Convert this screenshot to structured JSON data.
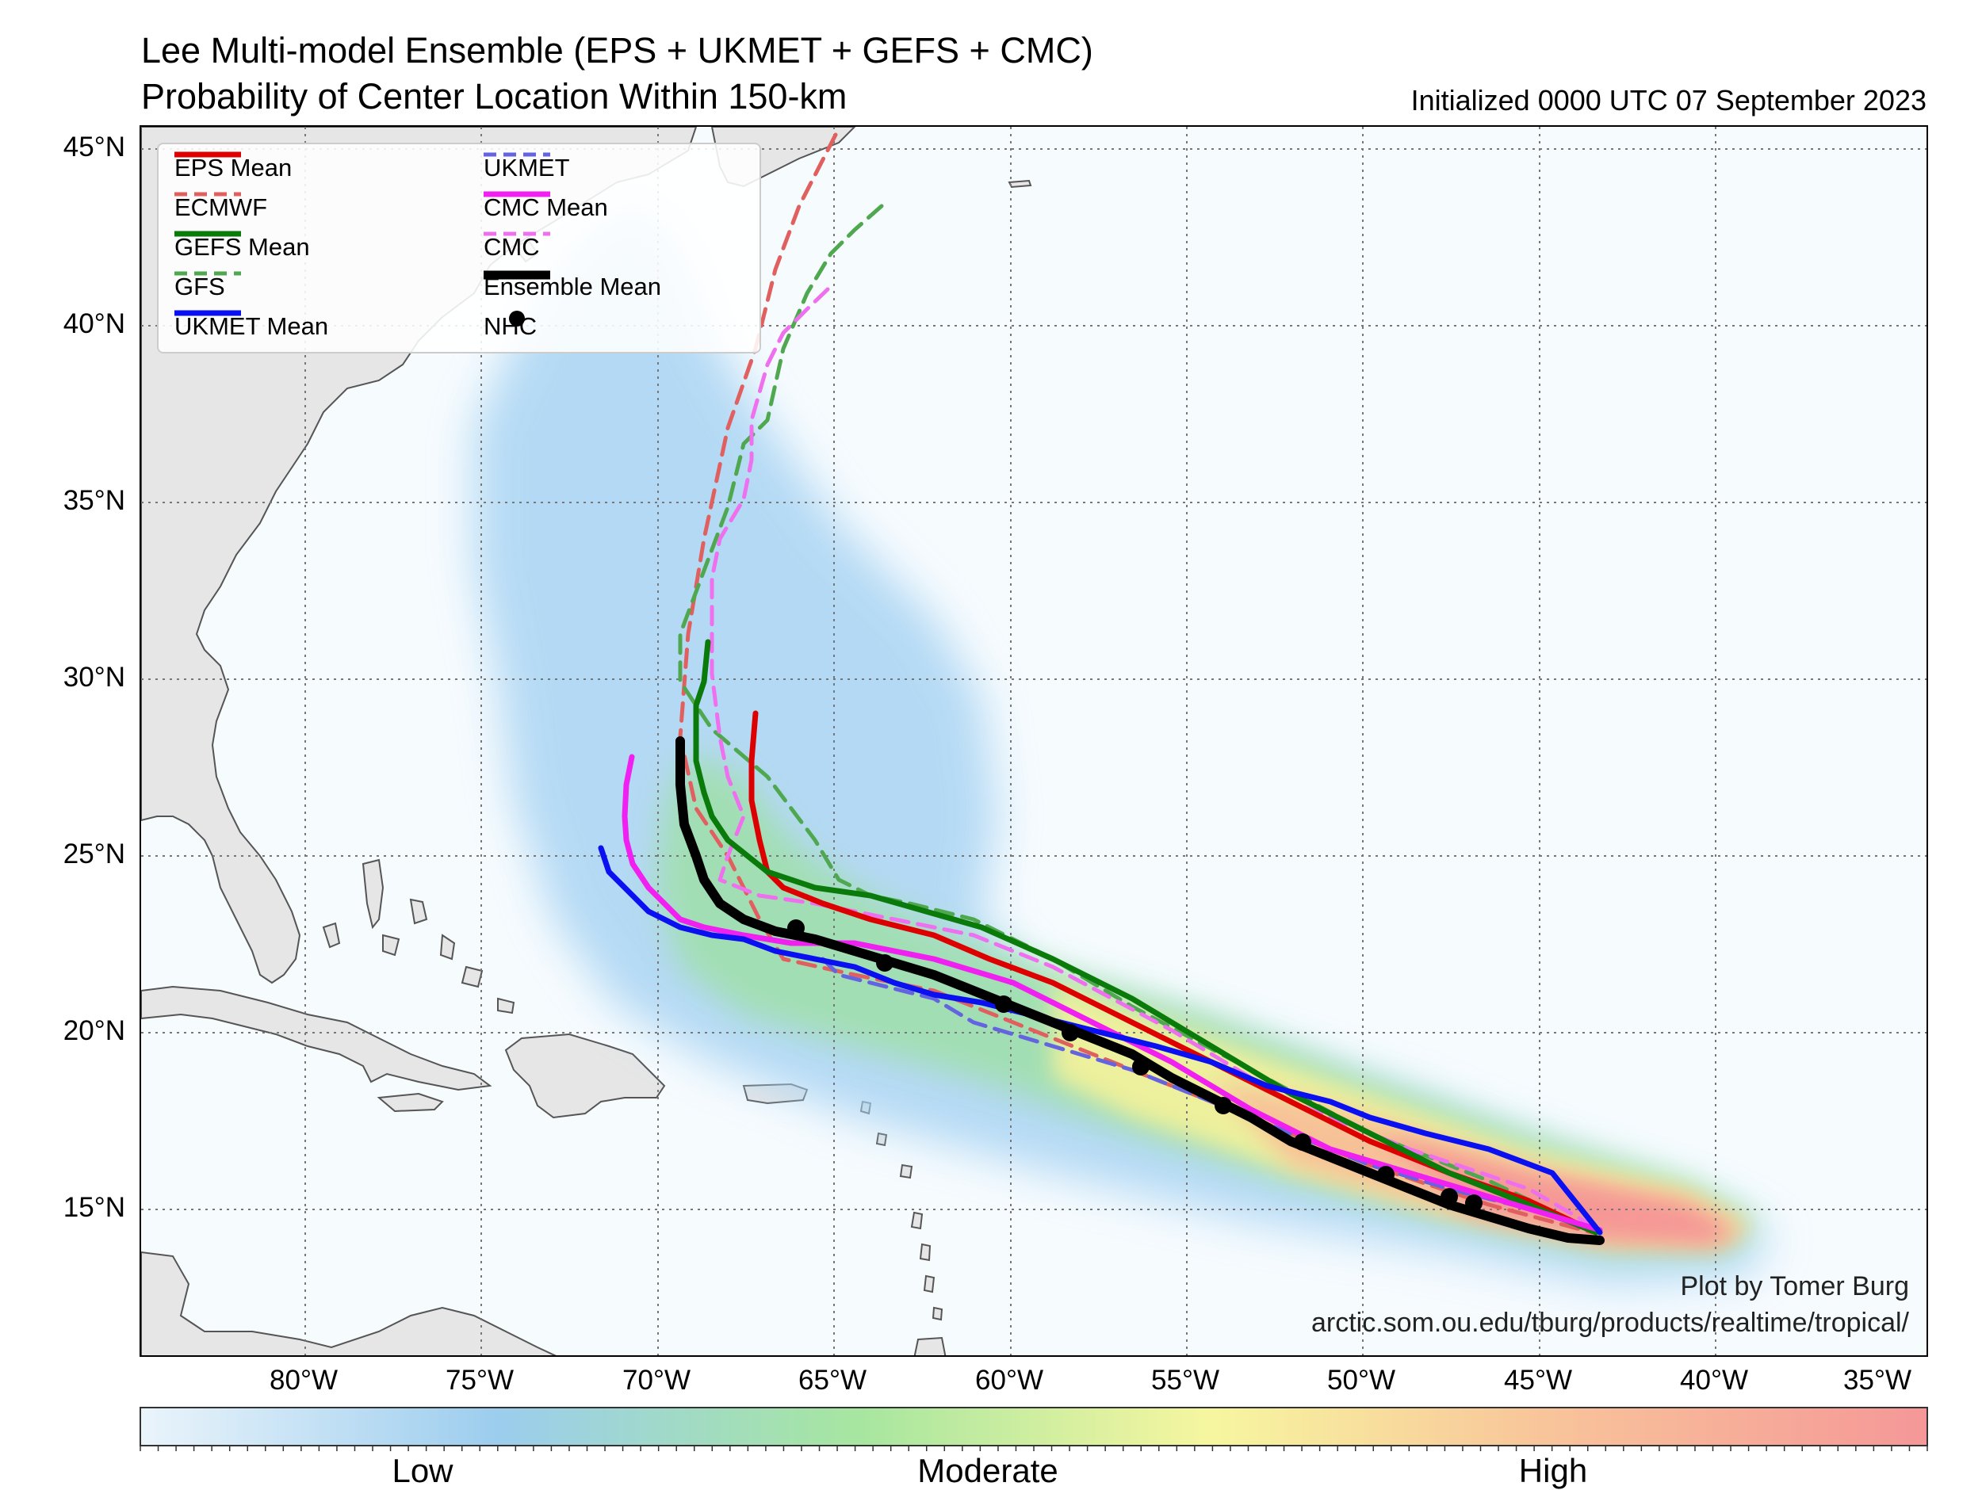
{
  "header": {
    "title_line1": "Lee Multi-model Ensemble (EPS + UKMET + GEFS + CMC)",
    "title_line2": "Probability of Center Location Within 150-km",
    "initialized": "Initialized 0000 UTC 07 September 2023"
  },
  "axes": {
    "lat_labels": [
      "45°N",
      "40°N",
      "35°N",
      "30°N",
      "25°N",
      "20°N",
      "15°N"
    ],
    "lon_labels": [
      "80°W",
      "75°W",
      "70°W",
      "65°W",
      "60°W",
      "55°W",
      "50°W",
      "45°W",
      "40°W",
      "35°W"
    ]
  },
  "legend": {
    "items": [
      {
        "label": "EPS Mean",
        "color": "#dd0000",
        "style": "solid"
      },
      {
        "label": "ECMWF",
        "color": "#e06060",
        "style": "dashed"
      },
      {
        "label": "GEFS Mean",
        "color": "#0a7a0a",
        "style": "solid"
      },
      {
        "label": "GFS",
        "color": "#4fa84f",
        "style": "dashed"
      },
      {
        "label": "UKMET Mean",
        "color": "#0a10f0",
        "style": "solid"
      },
      {
        "label": "UKMET",
        "color": "#6464e0",
        "style": "dashed"
      },
      {
        "label": "CMC Mean",
        "color": "#f020f0",
        "style": "solid"
      },
      {
        "label": "CMC",
        "color": "#ee70ee",
        "style": "dashed"
      },
      {
        "label": "Ensemble Mean",
        "color": "#000000",
        "style": "solid"
      },
      {
        "label": "NHC",
        "color": "#000000",
        "style": "marker"
      }
    ]
  },
  "colorbar": {
    "labels": [
      "Low",
      "Moderate",
      "High"
    ]
  },
  "credit": {
    "line1": "Plot by Tomer Burg",
    "line2": "arctic.som.ou.edu/tburg/products/realtime/tropical/"
  },
  "colors": {
    "land": "#e6e6e6",
    "ocean": "#f6fbfe",
    "coast": "#555555"
  }
}
